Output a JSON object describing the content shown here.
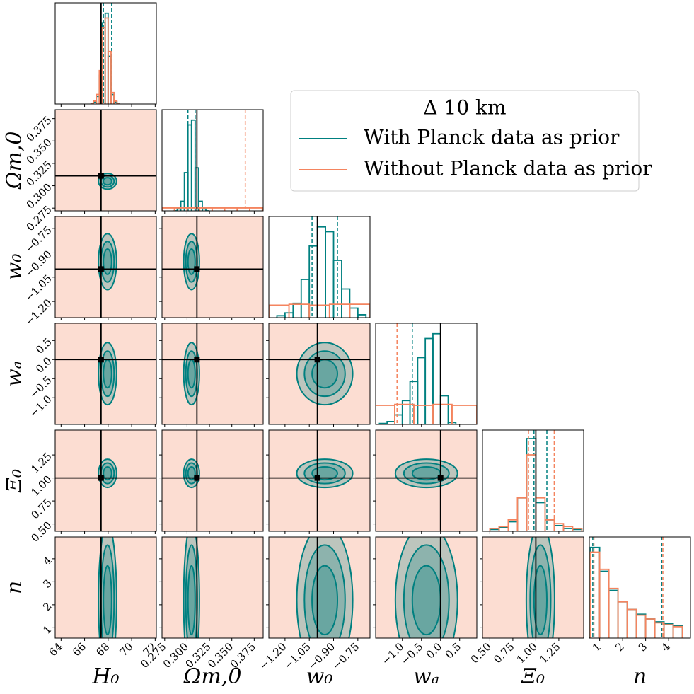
{
  "chart_data": {
    "type": "corner",
    "legend_title": "Δ 10 km",
    "legend": "upper right",
    "parameters": [
      {
        "label": "H₀",
        "lim": [
          63.5,
          72.1
        ],
        "ticks": [
          64,
          66,
          68,
          70,
          72
        ],
        "truth": 67.4
      },
      {
        "label": "Ωm,0",
        "lim": [
          0.272,
          0.385
        ],
        "ticks": [
          {
            "value": 0.275,
            "label": "0.275"
          },
          {
            "value": 0.3,
            "label": "0.300"
          },
          {
            "value": 0.325,
            "label": "0.325"
          },
          {
            "value": 0.35,
            "label": "0.350"
          },
          {
            "value": 0.375,
            "label": "0.375"
          }
        ],
        "truth": 0.311
      },
      {
        "label": "w₀",
        "lim": [
          -1.3,
          -0.675
        ],
        "ticks": [
          {
            "value": -1.2,
            "label": "−1.20"
          },
          {
            "value": -1.05,
            "label": "−1.05"
          },
          {
            "value": -0.9,
            "label": "−0.90"
          },
          {
            "value": -0.75,
            "label": "−0.75"
          }
        ],
        "truth": -1.0
      },
      {
        "label": "wₐ",
        "lim": [
          -1.7,
          0.95
        ],
        "ticks": [
          {
            "value": -1.0,
            "label": "−1.0"
          },
          {
            "value": -0.5,
            "label": "−0.5"
          },
          {
            "value": 0,
            "label": "0.0"
          },
          0.5
        ],
        "truth": 0
      },
      {
        "label": "Ξ₀",
        "lim": [
          0.42,
          1.52
        ],
        "ticks": [
          {
            "value": 0.5,
            "label": "0.50"
          },
          0.75,
          {
            "value": 1.0,
            "label": "1.00"
          },
          1.25
        ],
        "truth": 1.0
      },
      {
        "label": "n",
        "lim": [
          0.55,
          4.95
        ],
        "ticks": [
          1,
          2,
          3,
          4
        ],
        "truth": null
      }
    ],
    "series": [
      {
        "name": "With Planck data as prior",
        "color": "#008080",
        "quantiles": [
          [
            67.6,
            68.3
          ],
          [
            0.301,
            0.309
          ],
          [
            -1.033,
            -0.876
          ],
          [
            -0.74,
            0.0
          ],
          [
            0.98,
            1.12
          ],
          [
            0.7,
            3.7
          ]
        ],
        "histograms": [
          {
            "bins": [
              66.5,
              66.75,
              67.0,
              67.25,
              67.5,
              67.75,
              68.0,
              68.25,
              68.5,
              68.75,
              69.0
            ],
            "values": [
              0,
              0.02,
              0.08,
              0.3,
              0.85,
              0.95,
              0.5,
              0.1,
              0.02,
              0
            ]
          },
          {
            "bins": [
              0.285,
              0.289,
              0.293,
              0.297,
              0.301,
              0.305,
              0.309,
              0.313,
              0.317,
              0.321,
              0.325
            ],
            "values": [
              0,
              0.02,
              0.1,
              0.4,
              0.9,
              0.95,
              0.45,
              0.1,
              0.02,
              0
            ]
          },
          {
            "bins": [
              -1.25,
              -1.2,
              -1.15,
              -1.1,
              -1.05,
              -1.0,
              -0.95,
              -0.9,
              -0.85,
              -0.8,
              -0.75,
              -0.7
            ],
            "values": [
              0.02,
              0.05,
              0.15,
              0.4,
              0.75,
              0.95,
              0.9,
              0.6,
              0.3,
              0.1,
              0.03
            ]
          },
          {
            "bins": [
              -1.6,
              -1.4,
              -1.2,
              -1.0,
              -0.8,
              -0.6,
              -0.4,
              -0.2,
              0.0,
              0.2,
              0.4
            ],
            "values": [
              0.01,
              0.03,
              0.1,
              0.25,
              0.45,
              0.7,
              0.9,
              0.95,
              0.3,
              0.02
            ]
          },
          {
            "bins": [
              0.5,
              0.6,
              0.7,
              0.8,
              0.9,
              1.0,
              1.1,
              1.2,
              1.3,
              1.4,
              1.5
            ],
            "values": [
              0.02,
              0.04,
              0.1,
              0.35,
              0.97,
              0.3,
              0.12,
              0.06,
              0.03,
              0.02
            ]
          },
          {
            "bins": [
              0.6,
              1.0,
              1.4,
              1.8,
              2.2,
              2.6,
              3.0,
              3.4,
              3.8,
              4.2,
              4.6
            ],
            "values": [
              0.95,
              0.7,
              0.5,
              0.38,
              0.3,
              0.25,
              0.2,
              0.17,
              0.15,
              0.13
            ]
          }
        ]
      },
      {
        "name": "Without Planck data as prior",
        "color": "#f4845f",
        "quantiles": [
          [],
          [
            0.365
          ],
          [],
          [
            -1.14
          ],
          [
            0.92,
            1.2
          ],
          [
            0.75,
            3.75
          ]
        ],
        "histograms": [
          {
            "bins": [
              66.5,
              66.75,
              67.0,
              67.25,
              67.5,
              67.75,
              68.0,
              68.25,
              68.5,
              68.75,
              69.0
            ],
            "values": [
              0,
              0.03,
              0.1,
              0.35,
              0.8,
              0.9,
              0.55,
              0.12,
              0.03,
              0
            ]
          },
          {
            "bins": [
              0.272,
              0.286,
              0.3,
              0.314,
              0.328,
              0.342,
              0.356,
              0.37,
              0.384
            ],
            "values": [
              0.03,
              0.03,
              0.03,
              0.03,
              0.03,
              0.03,
              0.03,
              0.03
            ]
          },
          {
            "bins": [
              -1.3,
              -1.175,
              -1.05,
              -0.925,
              -0.8,
              -0.675
            ],
            "values": [
              0.13,
              0.14,
              0.13,
              0.14,
              0.14
            ]
          },
          {
            "bins": [
              -1.7,
              -1.2,
              -0.7,
              -0.2,
              0.3,
              0.95
            ],
            "values": [
              0.2,
              0.21,
              0.2,
              0.21,
              0.2
            ]
          },
          {
            "bins": [
              0.5,
              0.6,
              0.7,
              0.8,
              0.9,
              1.0,
              1.1,
              1.2,
              1.3,
              1.4,
              1.5
            ],
            "values": [
              0.03,
              0.05,
              0.12,
              0.35,
              0.8,
              0.35,
              0.12,
              0.08,
              0.05,
              0.03
            ]
          },
          {
            "bins": [
              0.6,
              1.0,
              1.4,
              1.8,
              2.2,
              2.6,
              3.0,
              3.4,
              3.8,
              4.2,
              4.6
            ],
            "values": [
              0.9,
              0.72,
              0.52,
              0.38,
              0.3,
              0.24,
              0.2,
              0.16,
              0.14,
              0.12
            ]
          }
        ]
      }
    ]
  }
}
